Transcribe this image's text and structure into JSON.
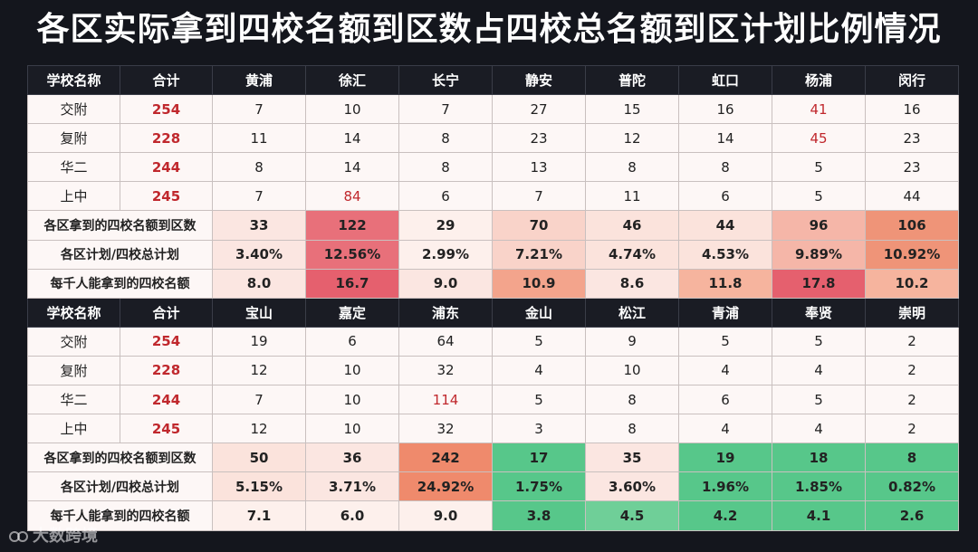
{
  "title": "各区实际拿到四校名额到区数占四校总名额到区计划比例情况",
  "colors": {
    "header_bg": "#1a1c24",
    "cell_bg": "#fdf7f6",
    "red_text": "#c0282d",
    "heat_light": "#f8dcd6",
    "heat_mid": "#f3a48c",
    "heat_orange": "#ee8a66",
    "heat_strong": "#e55a6a",
    "heat_pink": "#f0a3a6",
    "green": "#57c78a"
  },
  "watermark": "大数跨境",
  "sections": [
    {
      "header": [
        "学校名称",
        "合计",
        "黄浦",
        "徐汇",
        "长宁",
        "静安",
        "普陀",
        "虹口",
        "杨浦",
        "闵行"
      ],
      "schools": [
        {
          "name": "交附",
          "total": "254",
          "values": [
            "7",
            "10",
            "7",
            "27",
            "15",
            "16",
            "41",
            "16"
          ],
          "red": [
            6
          ]
        },
        {
          "name": "复附",
          "total": "228",
          "values": [
            "11",
            "14",
            "8",
            "23",
            "12",
            "14",
            "45",
            "23"
          ],
          "red": [
            6
          ]
        },
        {
          "name": "华二",
          "total": "244",
          "values": [
            "8",
            "14",
            "8",
            "13",
            "8",
            "8",
            "5",
            "23"
          ],
          "red": []
        },
        {
          "name": "上中",
          "total": "245",
          "values": [
            "7",
            "84",
            "6",
            "7",
            "11",
            "6",
            "5",
            "44"
          ],
          "red": [
            1
          ]
        }
      ],
      "summary": [
        {
          "label": "各区拿到的四校名额到区数",
          "values": [
            "33",
            "122",
            "29",
            "70",
            "46",
            "44",
            "96",
            "106"
          ],
          "bg": [
            "#fbe6e1",
            "#e8707a",
            "#fdf0ec",
            "#f9d3c9",
            "#fbe3dc",
            "#fbe3dc",
            "#f5b6a8",
            "#ef9478"
          ]
        },
        {
          "label": "各区计划/四校总计划",
          "values": [
            "3.40%",
            "12.56%",
            "2.99%",
            "7.21%",
            "4.74%",
            "4.53%",
            "9.89%",
            "10.92%"
          ],
          "bg": [
            "#fbe6e1",
            "#e8707a",
            "#fdf0ec",
            "#f9d3c9",
            "#fbe3dc",
            "#fbe3dc",
            "#f5b6a8",
            "#ef9478"
          ]
        },
        {
          "label": "每千人能拿到的四校名额",
          "values": [
            "8.0",
            "16.7",
            "9.0",
            "10.9",
            "8.6",
            "11.8",
            "17.8",
            "10.2"
          ],
          "bg": [
            "#fbe6e1",
            "#e5606e",
            "#fbe6e1",
            "#f3a48c",
            "#fbe6e1",
            "#f6b49e",
            "#e5606e",
            "#f6b49e"
          ]
        }
      ]
    },
    {
      "header": [
        "学校名称",
        "合计",
        "宝山",
        "嘉定",
        "浦东",
        "金山",
        "松江",
        "青浦",
        "奉贤",
        "崇明"
      ],
      "schools": [
        {
          "name": "交附",
          "total": "254",
          "values": [
            "19",
            "6",
            "64",
            "5",
            "9",
            "5",
            "5",
            "2"
          ],
          "red": []
        },
        {
          "name": "复附",
          "total": "228",
          "values": [
            "12",
            "10",
            "32",
            "4",
            "10",
            "4",
            "4",
            "2"
          ],
          "red": []
        },
        {
          "name": "华二",
          "total": "244",
          "values": [
            "7",
            "10",
            "114",
            "5",
            "8",
            "6",
            "5",
            "2"
          ],
          "red": [
            2
          ]
        },
        {
          "name": "上中",
          "total": "245",
          "values": [
            "12",
            "10",
            "32",
            "3",
            "8",
            "4",
            "4",
            "2"
          ],
          "red": []
        }
      ],
      "summary": [
        {
          "label": "各区拿到的四校名额到区数",
          "values": [
            "50",
            "36",
            "242",
            "17",
            "35",
            "19",
            "18",
            "8"
          ],
          "bg": [
            "#fbe3dc",
            "#fbe6e1",
            "#ef8a6c",
            "#57c78a",
            "#fbe6e1",
            "#57c78a",
            "#57c78a",
            "#57c78a"
          ]
        },
        {
          "label": "各区计划/四校总计划",
          "values": [
            "5.15%",
            "3.71%",
            "24.92%",
            "1.75%",
            "3.60%",
            "1.96%",
            "1.85%",
            "0.82%"
          ],
          "bg": [
            "#fbe3dc",
            "#fbe6e1",
            "#ef8a6c",
            "#57c78a",
            "#fbe6e1",
            "#57c78a",
            "#57c78a",
            "#57c78a"
          ]
        },
        {
          "label": "每千人能拿到的四校名额",
          "values": [
            "7.1",
            "6.0",
            "9.0",
            "3.8",
            "4.5",
            "4.2",
            "4.1",
            "2.6"
          ],
          "bg": [
            "#fdf0ec",
            "#fdf0ec",
            "#fdf0ec",
            "#57c78a",
            "#6fcf98",
            "#57c78a",
            "#57c78a",
            "#57c78a"
          ]
        }
      ]
    }
  ]
}
